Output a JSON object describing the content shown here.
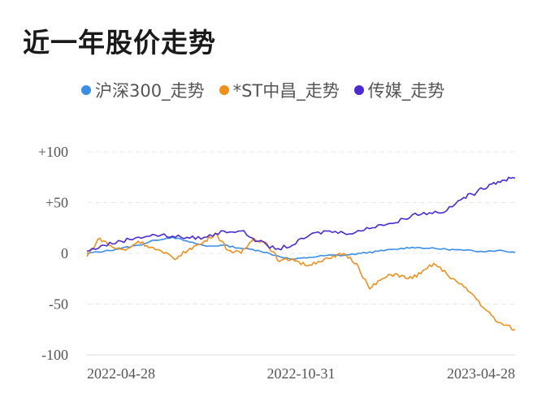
{
  "title": "近一年股价走势",
  "chart_data": {
    "type": "line",
    "title": "近一年股价走势",
    "xlabel": "",
    "ylabel": "",
    "ylim": [
      -100,
      100
    ],
    "y_ticks": [
      {
        "value": 100,
        "label": "+100"
      },
      {
        "value": 50,
        "label": "+50"
      },
      {
        "value": 0,
        "label": "0"
      },
      {
        "value": -50,
        "label": "-50"
      },
      {
        "value": -100,
        "label": "-100"
      }
    ],
    "x_ticks": [
      {
        "value": 0,
        "label": "2022-04-28"
      },
      {
        "value": 0.5,
        "label": "2022-10-31"
      },
      {
        "value": 1,
        "label": "2023-04-28"
      }
    ],
    "grid": true,
    "legend_position": "top",
    "series": [
      {
        "name": "沪深300_走势",
        "color": "#3a8ee6",
        "x": [
          0,
          0.04,
          0.08,
          0.12,
          0.16,
          0.2,
          0.24,
          0.28,
          0.32,
          0.36,
          0.4,
          0.44,
          0.48,
          0.52,
          0.56,
          0.6,
          0.64,
          0.68,
          0.72,
          0.76,
          0.8,
          0.84,
          0.88,
          0.92,
          0.96,
          1.0
        ],
        "values": [
          0,
          2,
          5,
          8,
          13,
          16,
          11,
          7,
          8,
          5,
          3,
          -2,
          -6,
          -4,
          -2,
          -2,
          0,
          2,
          4,
          6,
          5,
          4,
          3,
          2,
          3,
          1
        ]
      },
      {
        "name": "*ST中昌_走势",
        "color": "#f0901a",
        "x": [
          0,
          0.03,
          0.06,
          0.09,
          0.12,
          0.15,
          0.18,
          0.21,
          0.24,
          0.27,
          0.3,
          0.33,
          0.36,
          0.39,
          0.42,
          0.45,
          0.48,
          0.51,
          0.54,
          0.57,
          0.6,
          0.63,
          0.66,
          0.69,
          0.72,
          0.75,
          0.78,
          0.81,
          0.84,
          0.87,
          0.9,
          0.93,
          0.96,
          1.0
        ],
        "values": [
          -3,
          15,
          6,
          3,
          12,
          6,
          0,
          -5,
          5,
          10,
          20,
          3,
          0,
          15,
          10,
          -8,
          -5,
          -12,
          -8,
          -5,
          0,
          -10,
          -35,
          -25,
          -20,
          -25,
          -20,
          -10,
          -20,
          -30,
          -40,
          -55,
          -68,
          -75
        ]
      },
      {
        "name": "传媒_走势",
        "color": "#4b2ad6",
        "x": [
          0,
          0.04,
          0.08,
          0.12,
          0.16,
          0.2,
          0.24,
          0.28,
          0.32,
          0.36,
          0.4,
          0.44,
          0.48,
          0.52,
          0.56,
          0.6,
          0.64,
          0.68,
          0.72,
          0.76,
          0.8,
          0.84,
          0.88,
          0.91,
          0.94,
          0.97,
          1.0
        ],
        "values": [
          2,
          8,
          12,
          16,
          18,
          17,
          15,
          16,
          22,
          22,
          12,
          4,
          8,
          18,
          22,
          20,
          22,
          28,
          30,
          38,
          40,
          42,
          55,
          60,
          68,
          72,
          74
        ]
      }
    ]
  }
}
